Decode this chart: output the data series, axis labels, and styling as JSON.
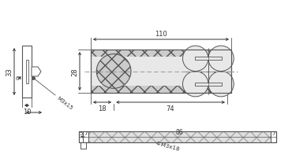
{
  "line_color": "#555555",
  "hatch_color": "#aaaaaa",
  "light_fill": "#e8e8e8",
  "dark_hatch_fill": "#cccccc",
  "dim_color": "#333333",
  "annotations": {
    "dim_110": "110",
    "dim_33": "33",
    "dim_28": "28",
    "dim_6": "6",
    "dim_10": "10",
    "dim_18": "18",
    "dim_74": "74",
    "label_m3x15": "M3x15",
    "dim_5": "5",
    "dim_7a": "7",
    "dim_86": "86",
    "dim_7b": "7",
    "label_4m3x18": "4-M3x18"
  }
}
